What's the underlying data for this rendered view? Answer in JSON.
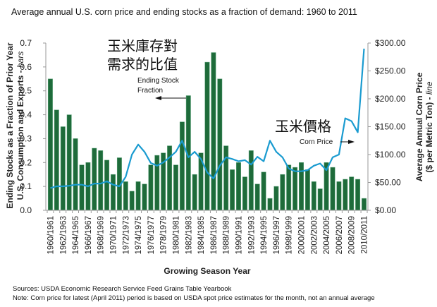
{
  "chart_data": {
    "type": "bar",
    "title": "Average annual U.S. corn price and ending stocks as a fraction of demand: 1960 to 2011",
    "xlabel": "Growing Season Year",
    "ylabel_left_line1": "Ending Stocks as a Fraction of Prior Year",
    "ylabel_left_line2": "U.S. Consumption and Exports - ",
    "ylabel_left_suffix": "bars",
    "ylabel_right_line1": "Average Annual Corn Price",
    "ylabel_right_line2": "($ per Metric Ton) - ",
    "ylabel_right_suffix": "line",
    "ylim_left": [
      0,
      0.7
    ],
    "ylim_right": [
      0,
      300
    ],
    "left_ticks": [
      "0.0",
      "0.1",
      "0.2",
      "0.3",
      "0.4",
      "0.5",
      "0.6",
      "0.7"
    ],
    "right_ticks": [
      "$0.00",
      "$50.00",
      "$100.00",
      "$150.00",
      "$200.00",
      "$250.00",
      "$300.00"
    ],
    "x_tick_labels": [
      "1960/1961",
      "1962/1963",
      "1964/1965",
      "1966/1967",
      "1968/1969",
      "1970/1971",
      "1972/1973",
      "1974/1975",
      "1976/1977",
      "1978/1979",
      "1980/1981",
      "1982/1983",
      "1984/1985",
      "1986/1987",
      "1988/1989",
      "1990/1991",
      "1992/1993",
      "1994/1995",
      "1996/1997",
      "1998/1999",
      "2000/2001",
      "2002/2003",
      "2004/2005",
      "2006/2007",
      "2008/2009",
      "2010/2011"
    ],
    "categories": [
      "1960",
      "1961",
      "1962",
      "1963",
      "1964",
      "1965",
      "1966",
      "1967",
      "1968",
      "1969",
      "1970",
      "1971",
      "1972",
      "1973",
      "1974",
      "1975",
      "1976",
      "1977",
      "1978",
      "1979",
      "1980",
      "1981",
      "1982",
      "1983",
      "1984",
      "1985",
      "1986",
      "1987",
      "1988",
      "1989",
      "1990",
      "1991",
      "1992",
      "1993",
      "1994",
      "1995",
      "1996",
      "1997",
      "1998",
      "1999",
      "2000",
      "2001",
      "2002",
      "2003",
      "2004",
      "2005",
      "2006",
      "2007",
      "2008",
      "2009",
      "2010"
    ],
    "series": [
      {
        "name": "Ending Stock Fraction",
        "type": "bar",
        "axis": "left",
        "color": "#1e6b3a",
        "values": [
          0.55,
          0.42,
          0.35,
          0.4,
          0.3,
          0.19,
          0.2,
          0.26,
          0.25,
          0.21,
          0.15,
          0.22,
          0.12,
          0.08,
          0.12,
          0.11,
          0.19,
          0.23,
          0.24,
          0.27,
          0.19,
          0.37,
          0.48,
          0.15,
          0.24,
          0.62,
          0.66,
          0.55,
          0.27,
          0.17,
          0.2,
          0.14,
          0.25,
          0.11,
          0.16,
          0.05,
          0.1,
          0.15,
          0.19,
          0.18,
          0.2,
          0.17,
          0.12,
          0.09,
          0.2,
          0.18,
          0.12,
          0.13,
          0.14,
          0.13,
          0.05
        ]
      },
      {
        "name": "Corn Price",
        "type": "line",
        "axis": "right",
        "color": "#1a9bd0",
        "values": [
          40,
          43,
          43,
          44,
          46,
          46,
          43,
          48,
          48,
          52,
          46,
          43,
          60,
          100,
          118,
          105,
          85,
          80,
          86,
          95,
          105,
          125,
          95,
          105,
          92,
          68,
          57,
          80,
          95,
          92,
          88,
          90,
          82,
          96,
          88,
          125,
          105,
          95,
          75,
          70,
          70,
          72,
          80,
          84,
          72,
          95,
          100,
          165,
          160,
          140,
          290
        ]
      }
    ],
    "annotations": {
      "stock_cjk_line1": "玉米庫存對",
      "stock_cjk_line2": "需求的比值",
      "stock_en_line1": "Ending Stock",
      "stock_en_line2": "Fraction",
      "price_cjk": "玉米價格",
      "price_en": "Corn Price"
    },
    "grid": false,
    "legend": "none"
  },
  "footer": {
    "sources": "Sources: USDA Economic  Research Service Feed Grains Table Yearbook",
    "note": "Note:  Corn price for latest (April 2011) period is based on USDA spot price estimates for the month, not an annual average"
  }
}
